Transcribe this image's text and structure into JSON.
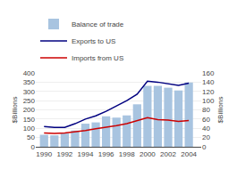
{
  "chart_data": {
    "type": "bar",
    "x": [
      1990,
      1991,
      1992,
      1993,
      1994,
      1995,
      1996,
      1997,
      1998,
      1999,
      2000,
      2001,
      2002,
      2003,
      2004
    ],
    "xlim": [
      1989.2,
      2005.2
    ],
    "xticks": [
      1990,
      1992,
      1994,
      1996,
      1998,
      2000,
      2002,
      2004
    ],
    "ylabel": "$Billions",
    "y2label": "$Billions",
    "ylim": [
      0,
      400
    ],
    "yticks": [
      0,
      50,
      100,
      150,
      200,
      250,
      300,
      350,
      400
    ],
    "y2lim": [
      0,
      160
    ],
    "y2ticks": [
      0,
      20,
      40,
      60,
      80,
      100,
      120,
      140,
      160
    ],
    "grid": true,
    "legend": "upper left",
    "series": [
      {
        "name": "Balance of trade",
        "type": "bar",
        "color": "#a8c4e0",
        "values": [
          65,
          62,
          72,
          88,
          125,
          132,
          165,
          158,
          170,
          230,
          330,
          330,
          320,
          305,
          348
        ]
      },
      {
        "name": "Exports to US",
        "type": "line",
        "color": "#000080",
        "axis": "y2",
        "values": [
          44,
          42,
          42,
          50,
          60,
          67,
          77,
          88,
          100,
          114,
          142,
          140,
          136,
          133,
          138
        ]
      },
      {
        "name": "Imports from US",
        "type": "line",
        "color": "#CC0000",
        "axis": "y2",
        "values": [
          30,
          29,
          30,
          32,
          35,
          39,
          42,
          46,
          50,
          57,
          63,
          59,
          58,
          55,
          57
        ]
      }
    ]
  }
}
